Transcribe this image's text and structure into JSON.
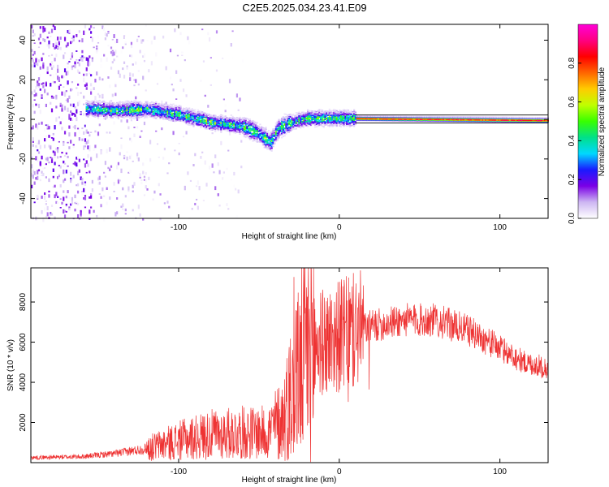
{
  "title": "C2E5.2025.034.23.41.E09",
  "chart_data": [
    {
      "type": "heatmap",
      "xlabel": "Height of straight line (km)",
      "ylabel": "Frequency (Hz)",
      "xlim": [
        -192,
        130
      ],
      "ylim": [
        -50,
        48
      ],
      "xticks": [
        {
          "v": -100,
          "label": "-100"
        },
        {
          "v": 0,
          "label": "0"
        },
        {
          "v": 100,
          "label": "100"
        }
      ],
      "yticks": [
        {
          "v": 40,
          "label": "40"
        },
        {
          "v": 20,
          "label": "20"
        },
        {
          "v": 0,
          "label": "0"
        },
        {
          "v": -20,
          "label": "-20"
        },
        {
          "v": -40,
          "label": "-40"
        }
      ],
      "ridge": [
        {
          "x": -158,
          "y": 6
        },
        {
          "x": -140,
          "y": 5
        },
        {
          "x": -120,
          "y": 5.5
        },
        {
          "x": -100,
          "y": 3
        },
        {
          "x": -80,
          "y": -1
        },
        {
          "x": -60,
          "y": -3
        },
        {
          "x": -50,
          "y": -7
        },
        {
          "x": -43,
          "y": -11
        },
        {
          "x": -38,
          "y": -4
        },
        {
          "x": -30,
          "y": -1
        },
        {
          "x": -20,
          "y": 1
        },
        {
          "x": -10,
          "y": 1
        },
        {
          "x": 0,
          "y": 1
        },
        {
          "x": 10,
          "y": 1
        },
        {
          "x": 130,
          "y": 0
        }
      ],
      "colorbar": {
        "label": "Normalized spectral amplitude",
        "ticks": [
          {
            "v": 0.0,
            "label": "0.0"
          },
          {
            "v": 0.2,
            "label": "0.2"
          },
          {
            "v": 0.4,
            "label": "0.4"
          },
          {
            "v": 0.6,
            "label": "0.6"
          },
          {
            "v": 0.8,
            "label": "0.8"
          }
        ],
        "range": [
          0,
          1
        ],
        "colors": [
          "#ffffff",
          "#cdb6f2",
          "#7a00e6",
          "#1a1aff",
          "#00d8ff",
          "#00e08a",
          "#38ff00",
          "#bfff00",
          "#ffcc00",
          "#ff6600",
          "#ff0000",
          "#ff0080",
          "#ff00d8"
        ]
      }
    },
    {
      "type": "line",
      "xlabel": "Height of straight line (km)",
      "ylabel": "SNR (10 * v/v)",
      "xlim": [
        -192,
        130
      ],
      "ylim": [
        0,
        9700
      ],
      "xticks": [
        {
          "v": -100,
          "label": "-100"
        },
        {
          "v": 0,
          "label": "0"
        },
        {
          "v": 100,
          "label": "100"
        }
      ],
      "yticks": [
        {
          "v": 2000,
          "label": "2000"
        },
        {
          "v": 4000,
          "label": "4000"
        },
        {
          "v": 6000,
          "label": "6000"
        },
        {
          "v": 8000,
          "label": "8000"
        }
      ],
      "color": "#ee3333",
      "envelope": [
        {
          "x": -192,
          "y": 250
        },
        {
          "x": -160,
          "y": 300
        },
        {
          "x": -140,
          "y": 450
        },
        {
          "x": -120,
          "y": 700
        },
        {
          "x": -100,
          "y": 1100
        },
        {
          "x": -80,
          "y": 1400
        },
        {
          "x": -60,
          "y": 1500
        },
        {
          "x": -45,
          "y": 1500
        },
        {
          "x": -35,
          "y": 2200
        },
        {
          "x": -30,
          "y": 3500
        },
        {
          "x": -25,
          "y": 4800
        },
        {
          "x": -20,
          "y": 5600
        },
        {
          "x": -10,
          "y": 6000
        },
        {
          "x": 0,
          "y": 6300
        },
        {
          "x": 20,
          "y": 6800
        },
        {
          "x": 40,
          "y": 7100
        },
        {
          "x": 60,
          "y": 7100
        },
        {
          "x": 80,
          "y": 6600
        },
        {
          "x": 100,
          "y": 5700
        },
        {
          "x": 115,
          "y": 5000
        },
        {
          "x": 130,
          "y": 4700
        }
      ]
    }
  ]
}
